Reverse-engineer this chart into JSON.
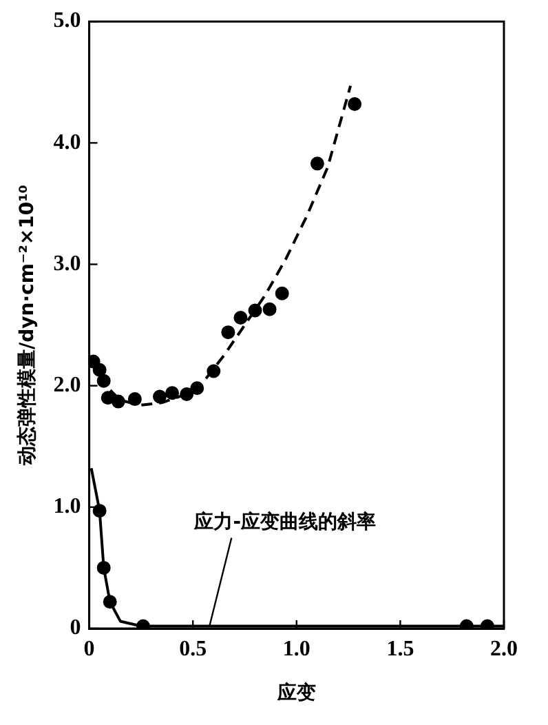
{
  "chart_data": {
    "type": "scatter",
    "xlabel": "应变",
    "ylabel": "动态弹性模量/dyn·cm⁻²×10¹⁰",
    "xlim": [
      0,
      2
    ],
    "ylim": [
      0,
      5
    ],
    "xticks": [
      0,
      {
        "value": 0.5,
        "label": "0.5"
      },
      {
        "value": 1,
        "label": "1.0"
      },
      {
        "value": 1.5,
        "label": "1.5"
      },
      {
        "value": 2,
        "label": "2.0"
      }
    ],
    "yticks": [
      0,
      {
        "value": 1,
        "label": "1.0"
      },
      {
        "value": 2,
        "label": "2.0"
      },
      {
        "value": 3,
        "label": "3.0"
      },
      {
        "value": 4,
        "label": "4.0"
      },
      {
        "value": 5,
        "label": "5.0"
      }
    ],
    "grid": false,
    "legend": false,
    "marker": "circle",
    "series": [
      {
        "color": "#000000",
        "x": [
          0.02,
          0.05,
          0.07,
          0.09,
          0.14,
          0.22,
          0.34,
          0.4,
          0.47,
          0.52,
          0.6,
          0.67,
          0.73,
          0.8,
          0.87,
          0.93,
          1.1,
          1.28
        ],
        "values": [
          2.2,
          2.13,
          2.04,
          1.9,
          1.87,
          1.89,
          1.91,
          1.94,
          1.93,
          1.98,
          2.12,
          2.44,
          2.56,
          2.62,
          2.63,
          2.76,
          3.83,
          4.32
        ]
      },
      {
        "type": "line",
        "color": "#000000",
        "marker": "none",
        "line_style": "dashed",
        "x": [
          0.02,
          0.08,
          0.15,
          0.25,
          0.35,
          0.45,
          0.55,
          0.65,
          0.75,
          0.85,
          0.95,
          1.05,
          1.15,
          1.26
        ],
        "values": [
          2.22,
          2.0,
          1.88,
          1.84,
          1.86,
          1.92,
          2.03,
          2.25,
          2.5,
          2.75,
          3.05,
          3.4,
          3.8,
          4.47
        ]
      },
      {
        "color": "#000000",
        "x": [
          0.05,
          0.07,
          0.1,
          0.26,
          1.82,
          1.92
        ],
        "values": [
          0.97,
          0.5,
          0.22,
          0.02,
          0.02,
          0.02
        ]
      },
      {
        "type": "line",
        "color": "#000000",
        "marker": "none",
        "line_style": "solid",
        "x": [
          0.01,
          0.05,
          0.07,
          0.1,
          0.15,
          0.25,
          2.0
        ],
        "values": [
          1.32,
          0.97,
          0.5,
          0.22,
          0.06,
          0.02,
          0.02
        ]
      }
    ],
    "annotations": [
      {
        "text": "应力-应变曲线的斜率",
        "x": 0.58,
        "y": 0.02
      }
    ]
  }
}
